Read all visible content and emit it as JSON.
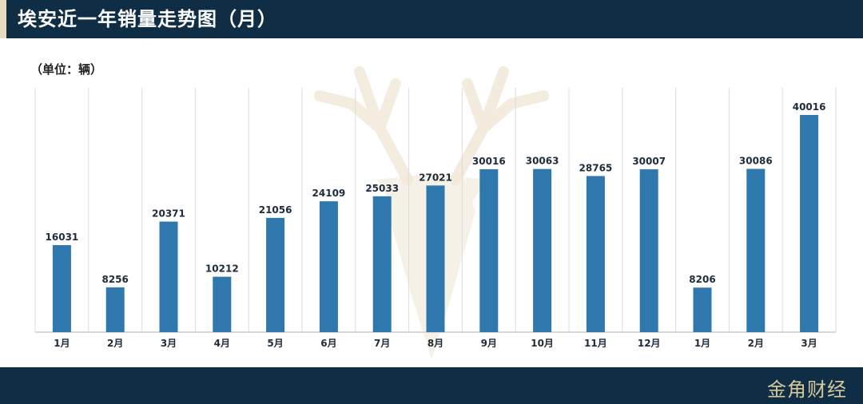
{
  "header": {
    "title": "埃安近一年销量走势图（月）"
  },
  "unit_label": "（单位：辆）",
  "footer": {
    "brand": "金角财经"
  },
  "colors": {
    "bar": "#2e78ad",
    "header_bg": "#0f2e45",
    "accent": "#e8dcc0",
    "grid": "#dddddd"
  },
  "chart_data": {
    "type": "bar",
    "categories": [
      "1月",
      "2月",
      "3月",
      "4月",
      "5月",
      "6月",
      "7月",
      "8月",
      "9月",
      "10月",
      "11月",
      "12月",
      "1月",
      "2月",
      "3月"
    ],
    "values": [
      16031,
      8256,
      20371,
      10212,
      21056,
      24109,
      25033,
      27021,
      30016,
      30063,
      28765,
      30007,
      8206,
      30086,
      40016
    ],
    "title": "埃安近一年销量走势图（月）",
    "ylabel": "（单位：辆）",
    "ylim": [
      0,
      40016
    ],
    "grid": "vertical category separators",
    "data_labels": true
  }
}
